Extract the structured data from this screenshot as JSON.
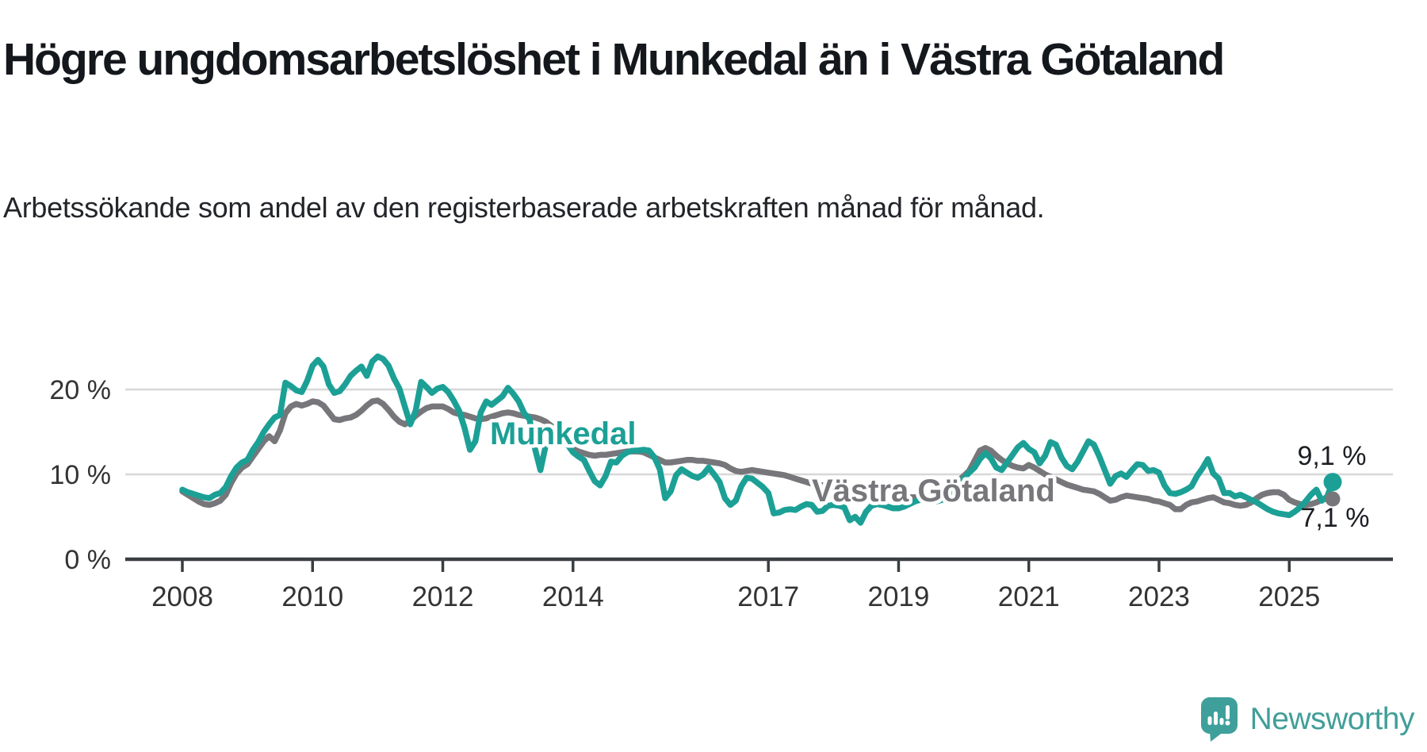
{
  "title": "Högre ungdomsarbetslöshet i Munkedal än i Västra Götaland",
  "subtitle": "Arbetssökande som andel av den registerbaserade arbetskraften månad för månad.",
  "branding": {
    "logo_text": "Newsworthy",
    "logo_icon": "speech-bubble-bar-chart-icon"
  },
  "colors": {
    "munkedal": "#1ca096",
    "vastra_gotaland": "#77777b",
    "grid": "#d8d8d8",
    "axis": "#3a3d42",
    "tick_text": "#333333",
    "value_label_text": "#1b1e23",
    "logo": "#3fa09b"
  },
  "chart_data": {
    "type": "line",
    "title": "Högre ungdomsarbetslöshet i Munkedal än i Västra Götaland",
    "subtitle": "Arbetssökande som andel av den registerbaserade arbetskraften månad för månad.",
    "unit": "%",
    "x_start": "2008-01",
    "x_end": "2025-09",
    "grid": "horizontal",
    "legend_position": "inline-labels",
    "x_axis": {
      "ticks": [
        {
          "year": 2008,
          "label": "2008"
        },
        {
          "year": 2010,
          "label": "2010"
        },
        {
          "year": 2012,
          "label": "2012"
        },
        {
          "year": 2014,
          "label": "2014"
        },
        {
          "year": 2017,
          "label": "2017"
        },
        {
          "year": 2019,
          "label": "2019"
        },
        {
          "year": 2021,
          "label": "2021"
        },
        {
          "year": 2023,
          "label": "2023"
        },
        {
          "year": 2025,
          "label": "2025"
        }
      ]
    },
    "y_axis": {
      "ylim": [
        0,
        25
      ],
      "ticks": [
        {
          "value": 0,
          "label": "0 %"
        },
        {
          "value": 10,
          "label": "10 %"
        },
        {
          "value": 20,
          "label": "20 %"
        }
      ],
      "gridline_values": [
        10,
        20
      ]
    },
    "series": [
      {
        "name": "Munkedal",
        "color": "#1ca096",
        "end_label": "9,1 %",
        "end_value": 9.1,
        "monthly": [
          {
            "year": 2008,
            "values": [
              8.2,
              7.9,
              7.7,
              7.5,
              7.3,
              7.2,
              7.6,
              7.8,
              8.5,
              9.8,
              10.8,
              11.4
            ]
          },
          {
            "year": 2009,
            "values": [
              11.7,
              12.9,
              13.8,
              15.0,
              15.9,
              16.7,
              17.0,
              20.8,
              20.4,
              19.9,
              19.7,
              21.0
            ]
          },
          {
            "year": 2010,
            "values": [
              22.8,
              23.5,
              22.7,
              20.6,
              19.6,
              19.8,
              20.6,
              21.6,
              22.2,
              22.7,
              21.6,
              23.3
            ]
          },
          {
            "year": 2011,
            "values": [
              23.9,
              23.6,
              22.8,
              21.3,
              20.1,
              18.0,
              15.9,
              17.5,
              20.9,
              20.3,
              19.6,
              20.1
            ]
          },
          {
            "year": 2012,
            "values": [
              20.3,
              19.7,
              18.7,
              17.5,
              15.5,
              12.9,
              13.9,
              17.3,
              18.6,
              18.2,
              18.7,
              19.2
            ]
          },
          {
            "year": 2013,
            "values": [
              20.2,
              19.5,
              18.6,
              17.2,
              16.5,
              13.0,
              10.5,
              13.5,
              15.3,
              15.8,
              15.0,
              13.5
            ]
          },
          {
            "year": 2014,
            "values": [
              12.6,
              12.1,
              11.7,
              10.4,
              9.2,
              8.7,
              9.8,
              11.5,
              11.4,
              12.2,
              12.6,
              12.8
            ]
          },
          {
            "year": 2015,
            "values": [
              12.8,
              12.9,
              12.8,
              12.0,
              10.6,
              7.2,
              8.0,
              9.9,
              10.6,
              10.2,
              9.8,
              9.6
            ]
          },
          {
            "year": 2016,
            "values": [
              10.0,
              10.8,
              10.0,
              9.1,
              7.2,
              6.4,
              6.9,
              8.6,
              9.6,
              9.5,
              9.0,
              8.5
            ]
          },
          {
            "year": 2017,
            "values": [
              7.8,
              5.4,
              5.5,
              5.8,
              5.9,
              5.8,
              6.2,
              6.5,
              6.4,
              5.6,
              5.7,
              6.3
            ]
          },
          {
            "year": 2018,
            "values": [
              6.4,
              6.3,
              6.1,
              4.6,
              5.0,
              4.3,
              5.6,
              6.3,
              6.5,
              6.4,
              6.2,
              6.0
            ]
          },
          {
            "year": 2019,
            "values": [
              6.0,
              6.2,
              6.5,
              6.8,
              7.0,
              7.1,
              6.9,
              6.8,
              7.0,
              7.3,
              7.8,
              8.6
            ]
          },
          {
            "year": 2020,
            "values": [
              9.5,
              10.2,
              10.8,
              11.8,
              12.5,
              11.9,
              10.8,
              10.5,
              11.4,
              12.3,
              13.2,
              13.7
            ]
          },
          {
            "year": 2021,
            "values": [
              13.0,
              12.6,
              11.3,
              12.2,
              13.8,
              13.5,
              12.0,
              11.0,
              10.6,
              11.5,
              12.7,
              13.9
            ]
          },
          {
            "year": 2022,
            "values": [
              13.5,
              12.1,
              10.5,
              8.9,
              9.8,
              10.1,
              9.7,
              10.5,
              11.2,
              11.1,
              10.4,
              10.5
            ]
          },
          {
            "year": 2023,
            "values": [
              10.2,
              8.7,
              7.8,
              7.7,
              7.9,
              8.2,
              8.6,
              9.8,
              10.7,
              11.8,
              10.1,
              9.5
            ]
          },
          {
            "year": 2024,
            "values": [
              7.8,
              7.8,
              7.4,
              7.6,
              7.3,
              7.0,
              6.7,
              6.3,
              5.9,
              5.6,
              5.4,
              5.3
            ]
          },
          {
            "year": 2025,
            "values": [
              5.2,
              5.6,
              6.1,
              6.8,
              7.6,
              8.2,
              6.9,
              7.4,
              9.1
            ]
          }
        ]
      },
      {
        "name": "Västra Götaland",
        "color": "#77777b",
        "end_label": "7,1 %",
        "end_value": 7.1,
        "monthly": [
          {
            "year": 2008,
            "values": [
              8.0,
              7.6,
              7.2,
              6.8,
              6.5,
              6.4,
              6.6,
              6.9,
              7.6,
              9.0,
              10.1,
              10.8
            ]
          },
          {
            "year": 2009,
            "values": [
              11.2,
              12.1,
              13.0,
              13.9,
              14.5,
              13.9,
              15.2,
              17.2,
              18.0,
              18.3,
              18.1,
              18.3
            ]
          },
          {
            "year": 2010,
            "values": [
              18.6,
              18.5,
              18.1,
              17.3,
              16.5,
              16.4,
              16.6,
              16.7,
              17.0,
              17.5,
              18.1,
              18.6
            ]
          },
          {
            "year": 2011,
            "values": [
              18.7,
              18.3,
              17.6,
              16.8,
              16.2,
              15.9,
              16.3,
              16.9,
              17.4,
              17.8,
              18.0,
              18.0
            ]
          },
          {
            "year": 2012,
            "values": [
              18.0,
              17.7,
              17.3,
              17.1,
              17.0,
              16.8,
              16.6,
              16.5,
              16.6,
              16.8,
              17.0,
              17.2
            ]
          },
          {
            "year": 2013,
            "values": [
              17.3,
              17.2,
              17.0,
              16.9,
              16.8,
              16.7,
              16.5,
              16.2,
              15.7,
              15.0,
              14.3,
              13.6
            ]
          },
          {
            "year": 2014,
            "values": [
              13.0,
              12.7,
              12.5,
              12.3,
              12.2,
              12.3,
              12.3,
              12.4,
              12.5,
              12.6,
              12.7,
              12.7
            ]
          },
          {
            "year": 2015,
            "values": [
              12.7,
              12.6,
              12.3,
              12.0,
              11.7,
              11.4,
              11.4,
              11.5,
              11.6,
              11.7,
              11.7,
              11.6
            ]
          },
          {
            "year": 2016,
            "values": [
              11.6,
              11.5,
              11.4,
              11.3,
              11.1,
              10.7,
              10.4,
              10.3,
              10.4,
              10.5,
              10.4,
              10.3
            ]
          },
          {
            "year": 2017,
            "values": [
              10.2,
              10.1,
              10.0,
              9.9,
              9.7,
              9.5,
              9.3,
              9.1,
              8.9,
              8.8,
              8.7,
              8.7
            ]
          },
          {
            "year": 2018,
            "values": [
              8.6,
              8.5,
              8.4,
              8.2,
              8.1,
              8.0,
              7.9,
              7.8,
              7.7,
              7.6,
              7.5,
              7.4
            ]
          },
          {
            "year": 2019,
            "values": [
              7.4,
              7.3,
              7.3,
              7.3,
              7.4,
              7.5,
              7.6,
              7.8,
              8.0,
              8.3,
              8.7,
              9.2
            ]
          },
          {
            "year": 2020,
            "values": [
              9.8,
              10.4,
              11.6,
              12.8,
              13.1,
              12.8,
              12.2,
              11.7,
              11.3,
              11.0,
              10.8,
              10.7
            ]
          },
          {
            "year": 2021,
            "values": [
              11.1,
              10.8,
              10.4,
              10.0,
              9.7,
              9.4,
              9.1,
              8.8,
              8.6,
              8.4,
              8.2,
              8.1
            ]
          },
          {
            "year": 2022,
            "values": [
              8.0,
              7.7,
              7.3,
              6.9,
              7.0,
              7.3,
              7.5,
              7.4,
              7.3,
              7.2,
              7.1,
              6.9
            ]
          },
          {
            "year": 2023,
            "values": [
              6.8,
              6.6,
              6.4,
              5.9,
              5.9,
              6.4,
              6.7,
              6.8,
              7.0,
              7.2,
              7.3,
              7.0
            ]
          },
          {
            "year": 2024,
            "values": [
              6.7,
              6.6,
              6.4,
              6.3,
              6.4,
              6.7,
              7.2,
              7.6,
              7.8,
              7.9,
              7.9,
              7.6
            ]
          },
          {
            "year": 2025,
            "values": [
              7.0,
              6.7,
              6.5,
              6.4,
              6.5,
              6.7,
              7.0,
              7.2,
              7.1
            ]
          }
        ]
      }
    ]
  }
}
